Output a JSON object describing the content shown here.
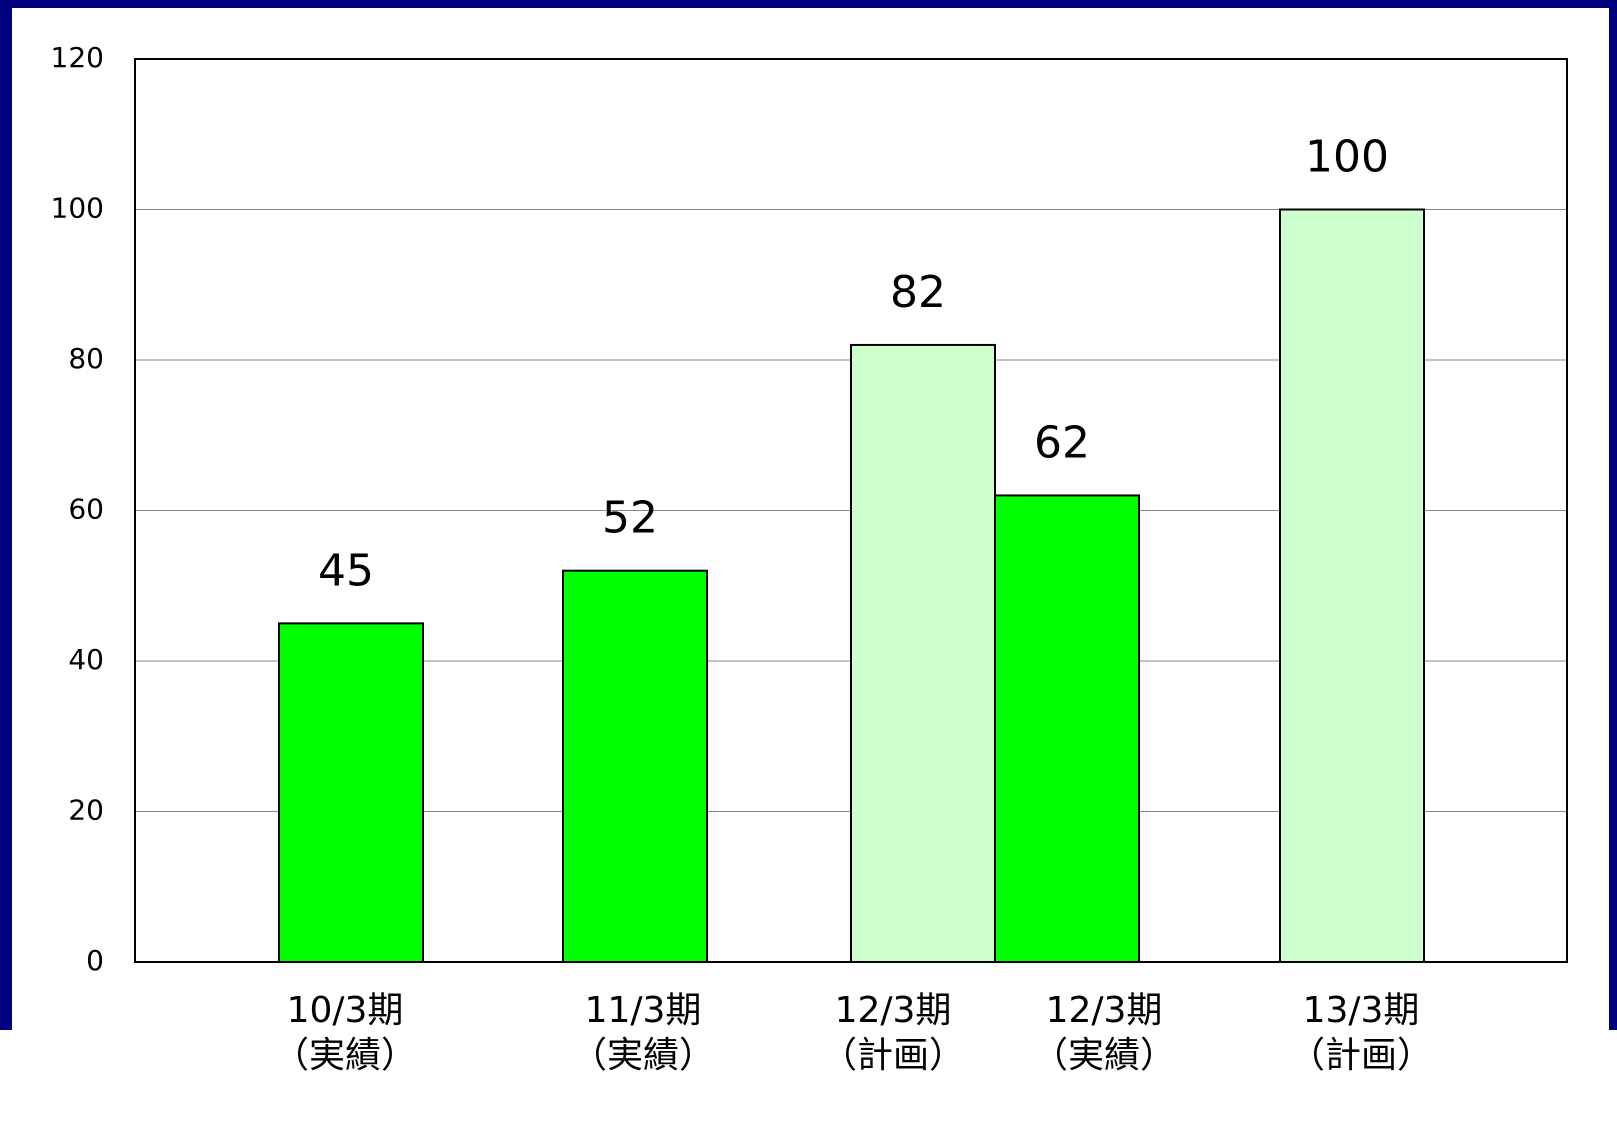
{
  "chart_data": {
    "type": "bar",
    "categories": [
      [
        "10/3期",
        "（実績）"
      ],
      [
        "11/3期",
        "（実績）"
      ],
      [
        "12/3期",
        "（計画）"
      ],
      [
        "12/3期",
        "（実績）"
      ],
      [
        "13/3期",
        "（計画）"
      ]
    ],
    "values": [
      45,
      52,
      82,
      62,
      100
    ],
    "colors": [
      "#00ff00",
      "#00ff00",
      "#ccffcc",
      "#00ff00",
      "#ccffcc"
    ],
    "ylim": [
      0,
      120
    ],
    "yticks": [
      0,
      20,
      40,
      60,
      80,
      100,
      120
    ],
    "grid": true
  }
}
